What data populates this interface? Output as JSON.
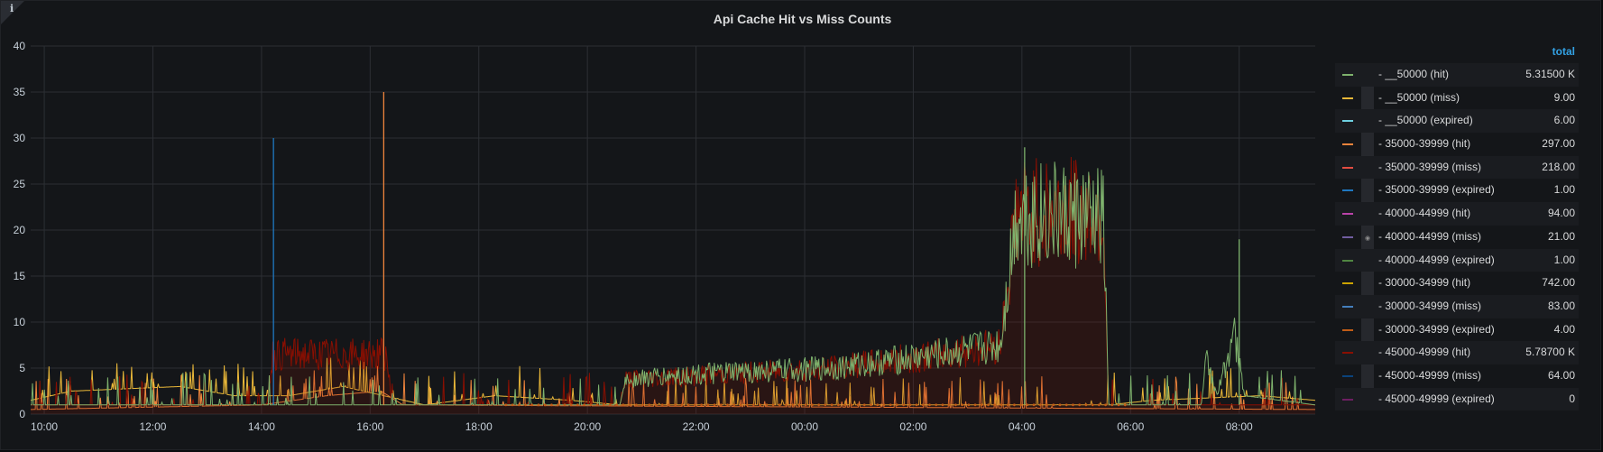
{
  "panel": {
    "title": "Api Cache Hit vs Miss Counts",
    "info_icon": "info-icon",
    "legend_header": "total"
  },
  "chart_data": {
    "type": "line",
    "title": "Api Cache Hit vs Miss Counts",
    "xlabel": "",
    "ylabel": "",
    "ylim": [
      0,
      40
    ],
    "y_ticks": [
      0,
      5,
      10,
      15,
      20,
      25,
      30,
      35,
      40
    ],
    "x_ticks": [
      "10:00",
      "12:00",
      "14:00",
      "16:00",
      "18:00",
      "20:00",
      "22:00",
      "00:00",
      "02:00",
      "04:00",
      "06:00",
      "08:00"
    ],
    "x_range_hours": [
      9.75,
      33.4
    ],
    "grid": true,
    "legend_placement": "right",
    "series": [
      {
        "name": "__50000 (hit)",
        "color": "#7eb26d",
        "total": "5.31500 K"
      },
      {
        "name": "__50000 (miss)",
        "color": "#eab839",
        "total": "9.00"
      },
      {
        "name": "__50000 (expired)",
        "color": "#6ed0e0",
        "total": "6.00"
      },
      {
        "name": "35000-39999 (hit)",
        "color": "#ef843c",
        "total": "297.00"
      },
      {
        "name": "35000-39999 (miss)",
        "color": "#e24d42",
        "total": "218.00"
      },
      {
        "name": "35000-39999 (expired)",
        "color": "#1f78c1",
        "total": "1.00"
      },
      {
        "name": "40000-44999 (hit)",
        "color": "#ba43a9",
        "total": "94.00"
      },
      {
        "name": "40000-44999 (miss)",
        "color": "#705da0",
        "total": "21.00"
      },
      {
        "name": "40000-44999 (expired)",
        "color": "#508642",
        "total": "1.00"
      },
      {
        "name": "30000-34999 (hit)",
        "color": "#cca300",
        "total": "742.00"
      },
      {
        "name": "30000-34999 (miss)",
        "color": "#447ebc",
        "total": "83.00"
      },
      {
        "name": "30000-34999 (expired)",
        "color": "#c15c17",
        "total": "4.00"
      },
      {
        "name": "45000-49999 (hit)",
        "color": "#890f02",
        "total": "5.78700 K"
      },
      {
        "name": "45000-49999 (miss)",
        "color": "#0a437c",
        "total": "64.00"
      },
      {
        "name": "45000-49999 (expired)",
        "color": "#6d1f62",
        "total": "0"
      }
    ],
    "profiles": {
      "45000-49999 (hit)": [
        [
          9.75,
          1
        ],
        [
          14.1,
          1
        ],
        [
          14.2,
          6.5
        ],
        [
          16.3,
          6.5
        ],
        [
          16.4,
          1
        ],
        [
          20.6,
          1
        ],
        [
          20.7,
          3.8
        ],
        [
          22,
          4.2
        ],
        [
          0.5,
          5
        ],
        [
          2.5,
          6.5
        ],
        [
          3.6,
          7.5
        ],
        [
          3.9,
          22
        ],
        [
          5.5,
          22
        ],
        [
          5.6,
          1
        ],
        [
          33.4,
          1
        ]
      ],
      "__50000 (hit)": [
        [
          9.75,
          1
        ],
        [
          20.6,
          1
        ],
        [
          20.7,
          3.8
        ],
        [
          22,
          4.3
        ],
        [
          24.5,
          5
        ],
        [
          26.5,
          6.5
        ],
        [
          27.6,
          7.5
        ],
        [
          27.9,
          22
        ],
        [
          29.5,
          21
        ],
        [
          29.6,
          1
        ],
        [
          31.3,
          1
        ],
        [
          31.4,
          6
        ],
        [
          31.6,
          2
        ],
        [
          31.9,
          9
        ],
        [
          32.1,
          2
        ],
        [
          33.4,
          1
        ]
      ],
      "__50000 (miss)": [
        [
          9.75,
          1.5
        ],
        [
          10.5,
          2.5
        ],
        [
          12.5,
          3
        ],
        [
          13.5,
          2
        ],
        [
          14.5,
          2
        ],
        [
          15.5,
          3
        ],
        [
          17,
          1
        ],
        [
          18.3,
          2
        ],
        [
          19.7,
          1.5
        ],
        [
          20.6,
          1
        ],
        [
          29.6,
          1
        ],
        [
          30.4,
          1.5
        ],
        [
          32.4,
          2
        ],
        [
          33.4,
          1.5
        ]
      ],
      "35000-39999 (hit)": [
        [
          9.75,
          0.5
        ],
        [
          14,
          1
        ],
        [
          15.2,
          2
        ],
        [
          16.2,
          2.5
        ],
        [
          16.6,
          1
        ],
        [
          33.4,
          0.5
        ]
      ]
    },
    "annotations": [
      {
        "series": "35000-39999 (hit)",
        "x": 16.25,
        "y": 35
      },
      {
        "series": "35000-39999 (expired)",
        "x": 14.22,
        "y": 30
      },
      {
        "series": "__50000 (hit)",
        "x": 28.05,
        "y": 29
      },
      {
        "series": "__50000 (hit)",
        "x": 32.0,
        "y": 19
      }
    ]
  }
}
